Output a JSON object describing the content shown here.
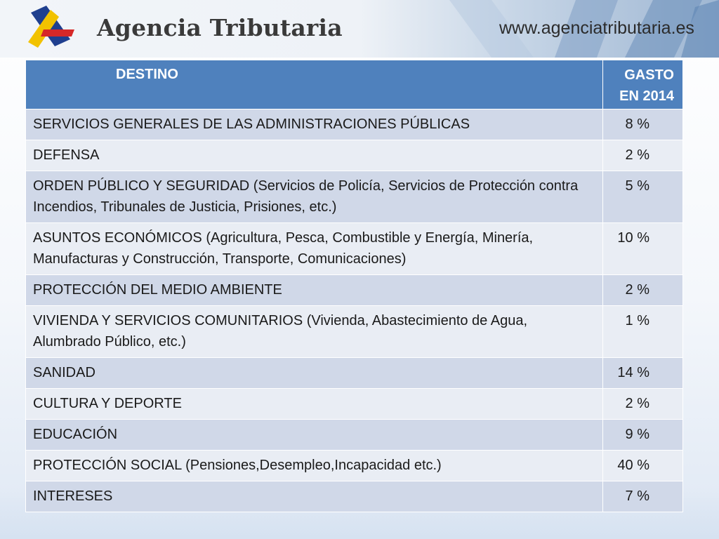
{
  "header": {
    "brand": "Agencia Tributaria",
    "url": "www.agenciatributaria.es"
  },
  "table": {
    "headers": [
      "DESTINO",
      "GASTO",
      "EN 2014"
    ],
    "rows": [
      {
        "destino": "SERVICIOS GENERALES DE LAS ADMINISTRACIONES PÚBLICAS",
        "gasto": "8 %"
      },
      {
        "destino": "DEFENSA",
        "gasto": "2 %"
      },
      {
        "destino": "ORDEN PÚBLICO Y SEGURIDAD (Servicios de Policía, Servicios de Protección contra Incendios, Tribunales de Justicia, Prisiones, etc.)",
        "gasto": "5 %"
      },
      {
        "destino": "ASUNTOS ECONÓMICOS (Agricultura, Pesca, Combustible y Energía, Minería, Manufacturas y Construcción, Transporte, Comunicaciones)",
        "gasto": "10 %"
      },
      {
        "destino": "PROTECCIÓN DEL MEDIO AMBIENTE",
        "gasto": "2 %"
      },
      {
        "destino": "VIVIENDA Y SERVICIOS COMUNITARIOS (Vivienda, Abastecimiento de Agua, Alumbrado Público, etc.)",
        "gasto": "1 %"
      },
      {
        "destino": "SANIDAD",
        "gasto": "14 %"
      },
      {
        "destino": "CULTURA Y DEPORTE",
        "gasto": "2 %"
      },
      {
        "destino": "EDUCACIÓN",
        "gasto": "9 %"
      },
      {
        "destino": "PROTECCIÓN SOCIAL (Pensiones,Desempleo,Incapacidad etc.)",
        "gasto": "40 %"
      },
      {
        "destino": "INTERESES",
        "gasto": "7 %"
      }
    ]
  }
}
